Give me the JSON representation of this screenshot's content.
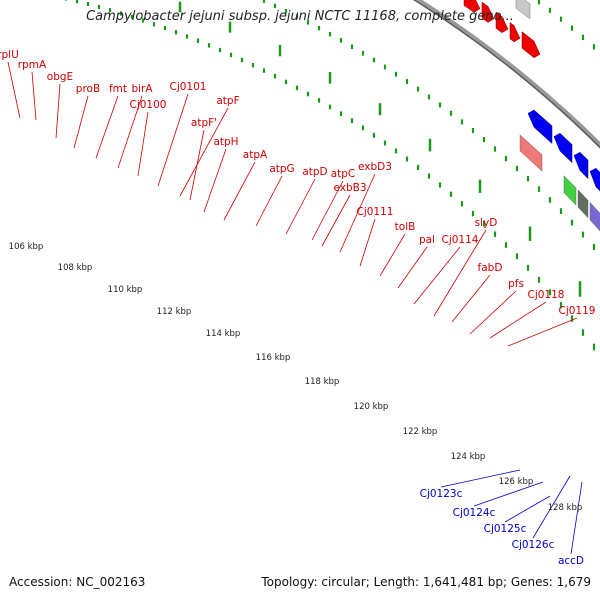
{
  "title": "Campylobacter jejuni subsp. jejuni NCTC 11168, complete geno...",
  "accession": "Accession: NC_002163",
  "topology": "Topology: circular; Length: 1,641,481 bp; Genes: 1,679",
  "colors": {
    "forward_label": "#cc0000",
    "reverse_label": "#0000cc",
    "forward_arrow": "#ee0000",
    "reverse_arrow": "#0000ee",
    "tick": "#1a9a1a",
    "backbone": "#888888"
  },
  "scale_labels": [
    "106 kbp",
    "108 kbp",
    "110 kbp",
    "112 kbp",
    "114 kbp",
    "116 kbp",
    "118 kbp",
    "120 kbp",
    "122 kbp",
    "124 kbp",
    "126 kbp",
    "128 kbp"
  ],
  "forward_gene_labels": [
    "rplU",
    "rpmA",
    "obgE",
    "proB",
    "fmt",
    "birA",
    "Cj0100",
    "Cj0101",
    "atpF",
    "atpF'",
    "atpH",
    "atpA",
    "atpG",
    "atpD",
    "atpC",
    "exbB3",
    "exbD3",
    "Cj0111",
    "tolB",
    "pal",
    "Cj0114",
    "slyD",
    "fabD",
    "pfs",
    "Cj0118",
    "Cj0119"
  ],
  "reverse_gene_labels": [
    "Cj0123c",
    "Cj0124c",
    "Cj0125c",
    "Cj0126c",
    "accD"
  ]
}
